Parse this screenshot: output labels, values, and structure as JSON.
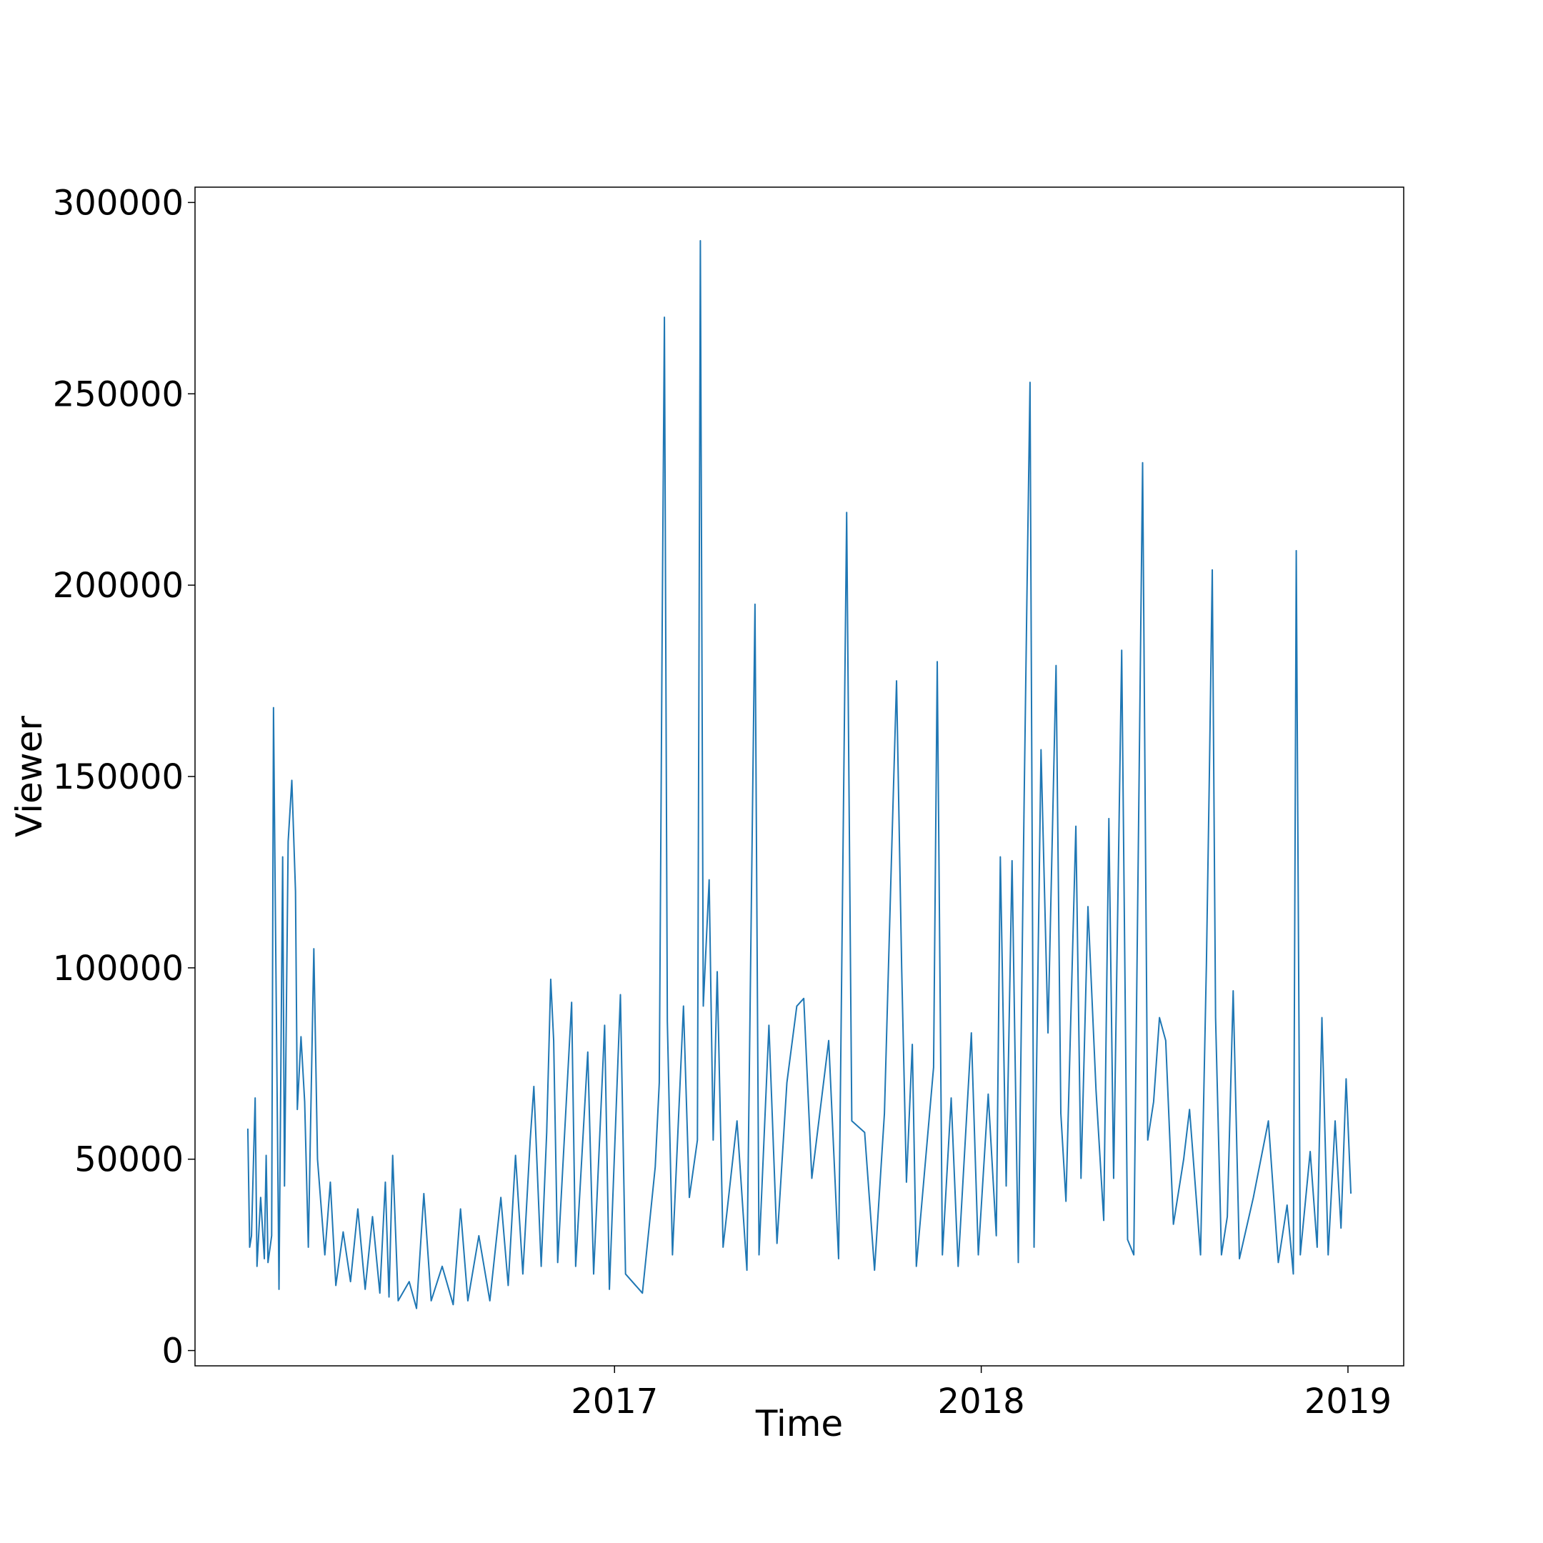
{
  "chart_data": {
    "type": "line",
    "x_label": "Time",
    "y_label": "Viewer",
    "color": "#1f77b4",
    "xlim": [
      2015.856,
      2019.152
    ],
    "xticks": [
      2017,
      2018,
      2019
    ],
    "ylim": [
      -4000,
      304000
    ],
    "yticks": [
      0,
      50000,
      100000,
      150000,
      200000,
      250000,
      300000
    ],
    "grid": false,
    "x": [
      2016.0,
      2016.005,
      2016.01,
      2016.02,
      2016.025,
      2016.035,
      2016.045,
      2016.05,
      2016.055,
      2016.065,
      2016.07,
      2016.075,
      2016.085,
      2016.095,
      2016.1,
      2016.11,
      2016.12,
      2016.13,
      2016.135,
      2016.145,
      2016.155,
      2016.165,
      2016.18,
      2016.19,
      2016.21,
      2016.225,
      2016.24,
      2016.26,
      2016.28,
      2016.3,
      2016.32,
      2016.34,
      2016.36,
      2016.375,
      2016.385,
      2016.395,
      2016.41,
      2016.44,
      2016.46,
      2016.48,
      2016.5,
      2016.53,
      2016.56,
      2016.58,
      2016.6,
      2016.63,
      2016.66,
      2016.69,
      2016.71,
      2016.73,
      2016.75,
      2016.77,
      2016.78,
      2016.8,
      2016.815,
      2016.826,
      2016.834,
      2016.845,
      2016.883,
      2016.894,
      2016.927,
      2016.943,
      2016.973,
      2016.986,
      2017.016,
      2017.03,
      2017.076,
      2017.111,
      2017.122,
      2017.13,
      2017.136,
      2017.144,
      2017.158,
      2017.188,
      2017.204,
      2017.226,
      2017.234,
      2017.242,
      2017.258,
      2017.269,
      2017.28,
      2017.296,
      2017.334,
      2017.361,
      2017.383,
      2017.394,
      2017.421,
      2017.443,
      2017.47,
      2017.497,
      2017.516,
      2017.538,
      2017.584,
      2017.611,
      2017.633,
      2017.647,
      2017.682,
      2017.709,
      2017.736,
      2017.755,
      2017.769,
      2017.783,
      2017.796,
      2017.812,
      2017.823,
      2017.87,
      2017.88,
      2017.894,
      2017.918,
      2017.937,
      2017.973,
      2017.992,
      2018.019,
      2018.041,
      2018.052,
      2018.068,
      2018.084,
      2018.101,
      2018.117,
      2018.125,
      2018.133,
      2018.144,
      2018.163,
      2018.182,
      2018.193,
      2018.204,
      2018.217,
      2018.231,
      2018.258,
      2018.272,
      2018.291,
      2018.313,
      2018.334,
      2018.348,
      2018.361,
      2018.383,
      2018.399,
      2018.416,
      2018.44,
      2018.454,
      2018.47,
      2018.486,
      2018.503,
      2018.524,
      2018.552,
      2018.568,
      2018.598,
      2018.614,
      2018.622,
      2018.63,
      2018.639,
      2018.655,
      2018.671,
      2018.687,
      2018.704,
      2018.742,
      2018.783,
      2018.81,
      2018.834,
      2018.851,
      2018.859,
      2018.87,
      2018.897,
      2018.916,
      2018.929,
      2018.946,
      2018.965,
      2018.981,
      2018.995,
      2019.008
    ],
    "values": [
      58000,
      27000,
      30000,
      66000,
      22000,
      40000,
      24000,
      51000,
      23000,
      30000,
      168000,
      116000,
      16000,
      129000,
      43000,
      133000,
      149000,
      120000,
      63000,
      82000,
      65000,
      27000,
      105000,
      50000,
      25000,
      44000,
      17000,
      31000,
      18000,
      37000,
      16000,
      35000,
      15000,
      44000,
      14000,
      51000,
      13000,
      18000,
      11000,
      41000,
      13000,
      22000,
      12000,
      37000,
      13000,
      30000,
      13000,
      40000,
      17000,
      51000,
      20000,
      55000,
      69000,
      22000,
      57000,
      97000,
      81000,
      23000,
      91000,
      22000,
      78000,
      20000,
      85000,
      16000,
      93000,
      20000,
      15000,
      48000,
      70000,
      190000,
      270000,
      86000,
      25000,
      90000,
      40000,
      55000,
      290000,
      90000,
      123000,
      55000,
      99000,
      27000,
      60000,
      21000,
      195000,
      25000,
      85000,
      28000,
      70000,
      90000,
      92000,
      45000,
      81000,
      24000,
      219000,
      60000,
      57000,
      21000,
      62000,
      128000,
      175000,
      100000,
      44000,
      80000,
      22000,
      74000,
      180000,
      25000,
      66000,
      22000,
      83000,
      25000,
      67000,
      30000,
      129000,
      43000,
      128000,
      23000,
      144000,
      200000,
      253000,
      27000,
      157000,
      83000,
      131000,
      179000,
      62000,
      39000,
      137000,
      45000,
      116000,
      68000,
      34000,
      139000,
      45000,
      183000,
      29000,
      25000,
      232000,
      55000,
      65000,
      87000,
      81000,
      33000,
      50000,
      63000,
      25000,
      101000,
      150000,
      204000,
      87000,
      25000,
      35000,
      94000,
      24000,
      40000,
      60000,
      23000,
      38000,
      20000,
      209000,
      25000,
      52000,
      27000,
      87000,
      25000,
      60000,
      32000,
      71000,
      41000
    ]
  }
}
